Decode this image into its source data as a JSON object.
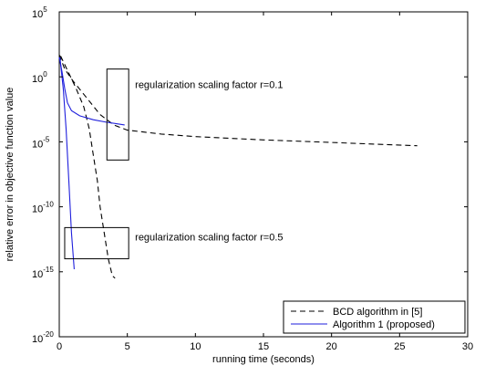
{
  "chart_data": {
    "type": "line",
    "xlabel": "running time (seconds)",
    "ylabel": "relative error in objective function value",
    "xlim": [
      0,
      30
    ],
    "ylim_log10": [
      -20,
      5
    ],
    "y_scale": "log",
    "x_ticks": [
      {
        "value": 0,
        "label": "0"
      },
      {
        "value": 5,
        "label": "5"
      },
      {
        "value": 10,
        "label": "10"
      },
      {
        "value": 15,
        "label": "15"
      },
      {
        "value": 20,
        "label": "20"
      },
      {
        "value": 25,
        "label": "25"
      },
      {
        "value": 30,
        "label": "30"
      }
    ],
    "y_ticks": [
      {
        "exp": 5,
        "base": "10",
        "sup": "5"
      },
      {
        "exp": 0,
        "base": "10",
        "sup": "0"
      },
      {
        "exp": -5,
        "base": "10",
        "sup": "-5"
      },
      {
        "exp": -10,
        "base": "10",
        "sup": "-10"
      },
      {
        "exp": -15,
        "base": "10",
        "sup": "-15"
      },
      {
        "exp": -20,
        "base": "10",
        "sup": "-20"
      }
    ],
    "grid": false,
    "legend_position": "bottom-right",
    "series": [
      {
        "name": "BCD algorithm in [5]",
        "color": "#000000",
        "dash": "dashed",
        "group": "r=0.1",
        "points": [
          [
            0,
            1.7
          ],
          [
            0.4,
            0.6
          ],
          [
            1,
            -0.3
          ],
          [
            2,
            -1.6
          ],
          [
            3,
            -2.9
          ],
          [
            4,
            -3.7
          ],
          [
            5,
            -4.1
          ],
          [
            7.5,
            -4.4
          ],
          [
            10,
            -4.6
          ],
          [
            15,
            -4.85
          ],
          [
            20,
            -5.05
          ],
          [
            26.3,
            -5.3
          ]
        ]
      },
      {
        "name": "BCD algorithm in [5]",
        "color": "#000000",
        "dash": "dashed",
        "group": "r=0.5",
        "points": [
          [
            0.1,
            1.6
          ],
          [
            0.6,
            0.5
          ],
          [
            1.2,
            -0.8
          ],
          [
            1.8,
            -2.3
          ],
          [
            2.2,
            -4
          ],
          [
            2.5,
            -6
          ],
          [
            2.8,
            -8
          ],
          [
            3.0,
            -10
          ],
          [
            3.3,
            -12
          ],
          [
            3.6,
            -14
          ],
          [
            3.9,
            -15.3
          ],
          [
            4.1,
            -15.5
          ]
        ]
      },
      {
        "name": "Algorithm 1 (proposed)",
        "color": "#1f1fdc",
        "dash": "solid",
        "group": "r=0.1",
        "points": [
          [
            0,
            1.5
          ],
          [
            0.2,
            0.4
          ],
          [
            0.4,
            -0.9
          ],
          [
            0.6,
            -2.0
          ],
          [
            0.9,
            -2.6
          ],
          [
            1.5,
            -3.0
          ],
          [
            2.5,
            -3.3
          ],
          [
            3.5,
            -3.5
          ],
          [
            4.8,
            -3.7
          ]
        ]
      },
      {
        "name": "Algorithm 1 (proposed)",
        "color": "#1f1fdc",
        "dash": "solid",
        "group": "r=0.5",
        "points": [
          [
            0.05,
            1.5
          ],
          [
            0.3,
            -1
          ],
          [
            0.5,
            -4
          ],
          [
            0.7,
            -8
          ],
          [
            0.9,
            -12
          ],
          [
            1.1,
            -14.8
          ]
        ]
      }
    ],
    "legend": [
      {
        "label": "BCD algorithm in [5]",
        "color": "#000000",
        "dash": "dashed"
      },
      {
        "label": "Algorithm 1 (proposed)",
        "color": "#1f1fdc",
        "dash": "solid"
      }
    ],
    "annotations": [
      {
        "text": "regularization scaling factor r=0.1",
        "box_x": [
          3.5,
          5.1
        ],
        "box_y_log10": [
          0.6,
          -6.4
        ]
      },
      {
        "text": "regularization scaling factor r=0.5",
        "box_x": [
          0.4,
          5.1
        ],
        "box_y_log10": [
          -11.6,
          -14.0
        ]
      }
    ]
  }
}
